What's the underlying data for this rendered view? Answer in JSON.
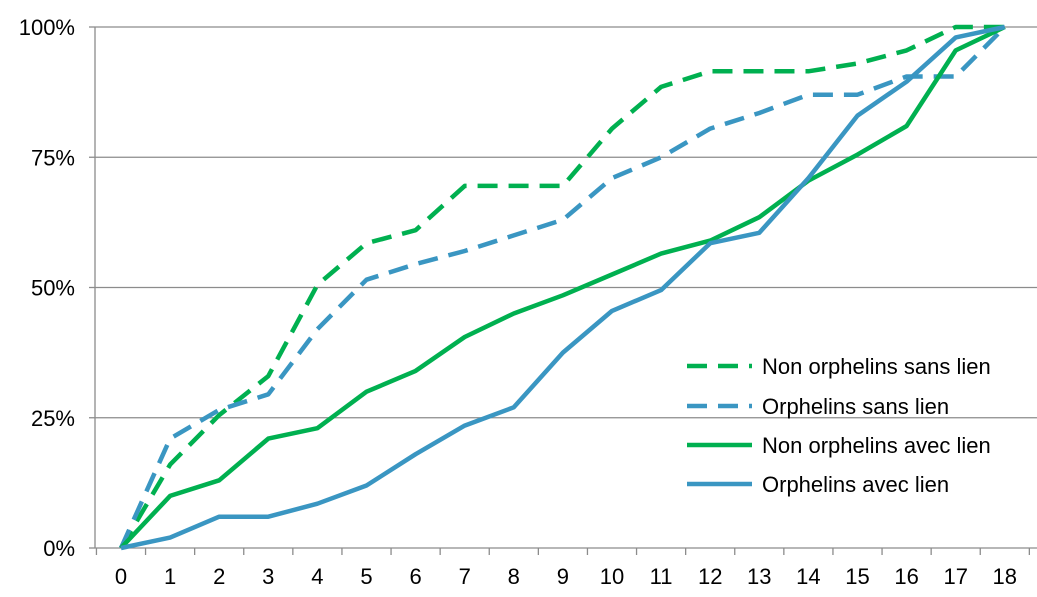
{
  "chart_data": {
    "type": "line",
    "x": [
      0,
      1,
      2,
      3,
      4,
      5,
      6,
      7,
      8,
      9,
      10,
      11,
      12,
      13,
      14,
      15,
      16,
      17,
      18
    ],
    "x_tick_labels": [
      "0",
      "1",
      "2",
      "3",
      "4",
      "5",
      "6",
      "7",
      "8",
      "9",
      "10",
      "11",
      "12",
      "13",
      "14",
      "15",
      "16",
      "17",
      "18"
    ],
    "y_tick_labels": [
      "0%",
      "25%",
      "50%",
      "75%",
      "100%"
    ],
    "y_ticks": [
      0,
      25,
      50,
      75,
      100
    ],
    "ylim": [
      0,
      100
    ],
    "grid": "horizontal",
    "legend_position": "right",
    "series": [
      {
        "name": "Non orphelins sans lien",
        "color": "#00B050",
        "style": "dashed",
        "values": [
          0,
          16,
          25.5,
          33,
          50.5,
          58.5,
          61,
          69.5,
          69.5,
          69.5,
          80.5,
          88.5,
          91.5,
          91.5,
          91.5,
          93,
          95.5,
          100,
          100
        ]
      },
      {
        "name": "Orphelins sans lien",
        "color": "#3A96C2",
        "style": "dashed",
        "values": [
          0,
          21,
          26.5,
          29.5,
          42,
          51.5,
          54.5,
          57,
          60,
          63,
          71,
          75,
          80.5,
          83.5,
          87,
          87,
          90.5,
          90.5,
          100
        ]
      },
      {
        "name": "Non orphelins avec lien",
        "color": "#00B050",
        "style": "solid",
        "values": [
          0,
          10,
          13,
          21,
          23,
          30,
          34,
          40.5,
          45,
          48.5,
          52.5,
          56.5,
          59,
          63.5,
          70.5,
          75.5,
          81,
          95.5,
          100
        ]
      },
      {
        "name": "Orphelins avec lien",
        "color": "#3A96C2",
        "style": "solid",
        "values": [
          0,
          2,
          6,
          6,
          8.5,
          12,
          18,
          23.5,
          27,
          37.5,
          45.5,
          49.5,
          58.5,
          60.5,
          71,
          83,
          89.5,
          98,
          100
        ]
      }
    ]
  }
}
